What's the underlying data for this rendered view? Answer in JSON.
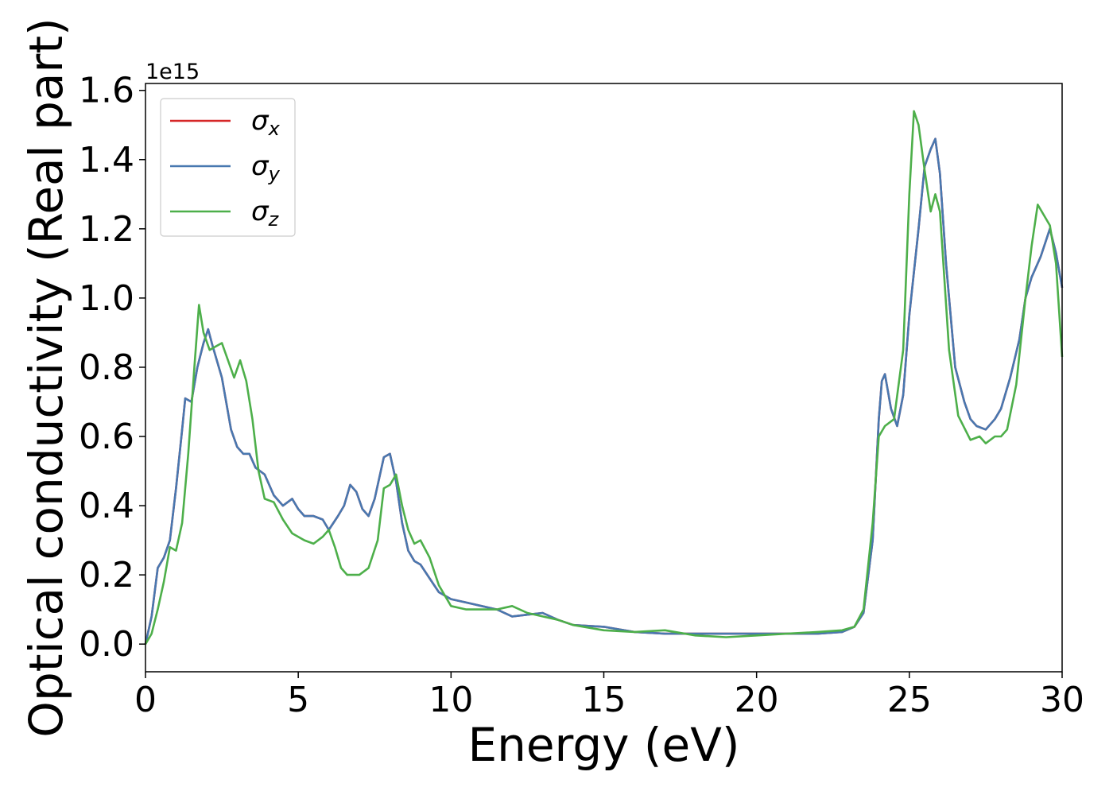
{
  "chart_data": {
    "type": "line",
    "xlabel": "Energy (eV)",
    "ylabel": "Optical conductivity (Real part)",
    "y_offset_text": "1e15",
    "xlim": [
      0,
      30
    ],
    "ylim": [
      -0.08,
      1.62
    ],
    "x_ticks": [
      0,
      5,
      10,
      15,
      20,
      25,
      30
    ],
    "x_tick_labels": [
      "0",
      "5",
      "10",
      "15",
      "20",
      "25",
      "30"
    ],
    "y_ticks": [
      0.0,
      0.2,
      0.4,
      0.6,
      0.8,
      1.0,
      1.2,
      1.4,
      1.6
    ],
    "y_tick_labels": [
      "0.0",
      "0.2",
      "0.4",
      "0.6",
      "0.8",
      "1.0",
      "1.2",
      "1.4",
      "1.6"
    ],
    "grid": false,
    "legend_position": "top-left",
    "series": [
      {
        "name": "σx",
        "legend_base": "σ",
        "legend_sub": "x",
        "color": "#d62728",
        "points": [
          [
            0,
            0
          ],
          [
            0.2,
            0.08
          ],
          [
            0.4,
            0.22
          ],
          [
            0.6,
            0.25
          ],
          [
            0.8,
            0.3
          ],
          [
            1.0,
            0.45
          ],
          [
            1.2,
            0.62
          ],
          [
            1.3,
            0.71
          ],
          [
            1.5,
            0.7
          ],
          [
            1.7,
            0.8
          ],
          [
            1.9,
            0.87
          ],
          [
            2.05,
            0.91
          ],
          [
            2.2,
            0.86
          ],
          [
            2.5,
            0.77
          ],
          [
            2.8,
            0.62
          ],
          [
            3.0,
            0.57
          ],
          [
            3.2,
            0.55
          ],
          [
            3.4,
            0.55
          ],
          [
            3.6,
            0.51
          ],
          [
            3.9,
            0.49
          ],
          [
            4.2,
            0.43
          ],
          [
            4.5,
            0.4
          ],
          [
            4.8,
            0.42
          ],
          [
            5.0,
            0.39
          ],
          [
            5.2,
            0.37
          ],
          [
            5.5,
            0.37
          ],
          [
            5.8,
            0.36
          ],
          [
            6.0,
            0.33
          ],
          [
            6.3,
            0.37
          ],
          [
            6.5,
            0.4
          ],
          [
            6.7,
            0.46
          ],
          [
            6.9,
            0.44
          ],
          [
            7.1,
            0.39
          ],
          [
            7.3,
            0.37
          ],
          [
            7.5,
            0.42
          ],
          [
            7.8,
            0.54
          ],
          [
            8.0,
            0.55
          ],
          [
            8.2,
            0.47
          ],
          [
            8.4,
            0.35
          ],
          [
            8.6,
            0.27
          ],
          [
            8.8,
            0.24
          ],
          [
            9.0,
            0.23
          ],
          [
            9.3,
            0.19
          ],
          [
            9.6,
            0.15
          ],
          [
            10.0,
            0.13
          ],
          [
            10.5,
            0.12
          ],
          [
            11.0,
            0.11
          ],
          [
            11.5,
            0.1
          ],
          [
            12.0,
            0.08
          ],
          [
            12.5,
            0.085
          ],
          [
            13.0,
            0.09
          ],
          [
            13.5,
            0.07
          ],
          [
            14.0,
            0.055
          ],
          [
            15.0,
            0.05
          ],
          [
            16.0,
            0.035
          ],
          [
            17.0,
            0.03
          ],
          [
            18.0,
            0.03
          ],
          [
            19.0,
            0.03
          ],
          [
            20.0,
            0.03
          ],
          [
            21.0,
            0.03
          ],
          [
            22.0,
            0.03
          ],
          [
            22.8,
            0.035
          ],
          [
            23.2,
            0.05
          ],
          [
            23.5,
            0.09
          ],
          [
            23.8,
            0.3
          ],
          [
            24.0,
            0.65
          ],
          [
            24.1,
            0.76
          ],
          [
            24.2,
            0.78
          ],
          [
            24.4,
            0.68
          ],
          [
            24.6,
            0.63
          ],
          [
            24.8,
            0.72
          ],
          [
            25.0,
            0.95
          ],
          [
            25.3,
            1.2
          ],
          [
            25.5,
            1.38
          ],
          [
            25.7,
            1.43
          ],
          [
            25.85,
            1.46
          ],
          [
            26.0,
            1.36
          ],
          [
            26.2,
            1.1
          ],
          [
            26.5,
            0.8
          ],
          [
            26.8,
            0.7
          ],
          [
            27.0,
            0.65
          ],
          [
            27.2,
            0.63
          ],
          [
            27.5,
            0.62
          ],
          [
            27.8,
            0.65
          ],
          [
            28.0,
            0.68
          ],
          [
            28.3,
            0.77
          ],
          [
            28.6,
            0.88
          ],
          [
            28.8,
            1.0
          ],
          [
            29.0,
            1.06
          ],
          [
            29.3,
            1.12
          ],
          [
            29.6,
            1.2
          ],
          [
            29.8,
            1.13
          ],
          [
            30.0,
            1.03
          ]
        ]
      },
      {
        "name": "σy",
        "legend_base": "σ",
        "legend_sub": "y",
        "color": "#4878b0",
        "points": [
          [
            0,
            0
          ],
          [
            0.2,
            0.08
          ],
          [
            0.4,
            0.22
          ],
          [
            0.6,
            0.25
          ],
          [
            0.8,
            0.3
          ],
          [
            1.0,
            0.45
          ],
          [
            1.2,
            0.62
          ],
          [
            1.3,
            0.71
          ],
          [
            1.5,
            0.7
          ],
          [
            1.7,
            0.8
          ],
          [
            1.9,
            0.87
          ],
          [
            2.05,
            0.91
          ],
          [
            2.2,
            0.86
          ],
          [
            2.5,
            0.77
          ],
          [
            2.8,
            0.62
          ],
          [
            3.0,
            0.57
          ],
          [
            3.2,
            0.55
          ],
          [
            3.4,
            0.55
          ],
          [
            3.6,
            0.51
          ],
          [
            3.9,
            0.49
          ],
          [
            4.2,
            0.43
          ],
          [
            4.5,
            0.4
          ],
          [
            4.8,
            0.42
          ],
          [
            5.0,
            0.39
          ],
          [
            5.2,
            0.37
          ],
          [
            5.5,
            0.37
          ],
          [
            5.8,
            0.36
          ],
          [
            6.0,
            0.33
          ],
          [
            6.3,
            0.37
          ],
          [
            6.5,
            0.4
          ],
          [
            6.7,
            0.46
          ],
          [
            6.9,
            0.44
          ],
          [
            7.1,
            0.39
          ],
          [
            7.3,
            0.37
          ],
          [
            7.5,
            0.42
          ],
          [
            7.8,
            0.54
          ],
          [
            8.0,
            0.55
          ],
          [
            8.2,
            0.47
          ],
          [
            8.4,
            0.35
          ],
          [
            8.6,
            0.27
          ],
          [
            8.8,
            0.24
          ],
          [
            9.0,
            0.23
          ],
          [
            9.3,
            0.19
          ],
          [
            9.6,
            0.15
          ],
          [
            10.0,
            0.13
          ],
          [
            10.5,
            0.12
          ],
          [
            11.0,
            0.11
          ],
          [
            11.5,
            0.1
          ],
          [
            12.0,
            0.08
          ],
          [
            12.5,
            0.085
          ],
          [
            13.0,
            0.09
          ],
          [
            13.5,
            0.07
          ],
          [
            14.0,
            0.055
          ],
          [
            15.0,
            0.05
          ],
          [
            16.0,
            0.035
          ],
          [
            17.0,
            0.03
          ],
          [
            18.0,
            0.03
          ],
          [
            19.0,
            0.03
          ],
          [
            20.0,
            0.03
          ],
          [
            21.0,
            0.03
          ],
          [
            22.0,
            0.03
          ],
          [
            22.8,
            0.035
          ],
          [
            23.2,
            0.05
          ],
          [
            23.5,
            0.09
          ],
          [
            23.8,
            0.3
          ],
          [
            24.0,
            0.65
          ],
          [
            24.1,
            0.76
          ],
          [
            24.2,
            0.78
          ],
          [
            24.4,
            0.68
          ],
          [
            24.6,
            0.63
          ],
          [
            24.8,
            0.72
          ],
          [
            25.0,
            0.95
          ],
          [
            25.3,
            1.2
          ],
          [
            25.5,
            1.38
          ],
          [
            25.7,
            1.43
          ],
          [
            25.85,
            1.46
          ],
          [
            26.0,
            1.36
          ],
          [
            26.2,
            1.1
          ],
          [
            26.5,
            0.8
          ],
          [
            26.8,
            0.7
          ],
          [
            27.0,
            0.65
          ],
          [
            27.2,
            0.63
          ],
          [
            27.5,
            0.62
          ],
          [
            27.8,
            0.65
          ],
          [
            28.0,
            0.68
          ],
          [
            28.3,
            0.77
          ],
          [
            28.6,
            0.88
          ],
          [
            28.8,
            1.0
          ],
          [
            29.0,
            1.06
          ],
          [
            29.3,
            1.12
          ],
          [
            29.6,
            1.2
          ],
          [
            29.8,
            1.13
          ],
          [
            30.0,
            1.03
          ]
        ]
      },
      {
        "name": "σz",
        "legend_base": "σ",
        "legend_sub": "z",
        "color": "#4daf4a",
        "points": [
          [
            0,
            0
          ],
          [
            0.2,
            0.03
          ],
          [
            0.4,
            0.1
          ],
          [
            0.6,
            0.18
          ],
          [
            0.8,
            0.28
          ],
          [
            1.0,
            0.27
          ],
          [
            1.2,
            0.35
          ],
          [
            1.4,
            0.55
          ],
          [
            1.6,
            0.8
          ],
          [
            1.75,
            0.98
          ],
          [
            1.9,
            0.9
          ],
          [
            2.1,
            0.85
          ],
          [
            2.3,
            0.86
          ],
          [
            2.5,
            0.87
          ],
          [
            2.7,
            0.82
          ],
          [
            2.9,
            0.77
          ],
          [
            3.1,
            0.82
          ],
          [
            3.3,
            0.76
          ],
          [
            3.5,
            0.65
          ],
          [
            3.7,
            0.5
          ],
          [
            3.9,
            0.42
          ],
          [
            4.2,
            0.41
          ],
          [
            4.5,
            0.36
          ],
          [
            4.8,
            0.32
          ],
          [
            5.2,
            0.3
          ],
          [
            5.5,
            0.29
          ],
          [
            5.8,
            0.31
          ],
          [
            6.0,
            0.33
          ],
          [
            6.2,
            0.28
          ],
          [
            6.4,
            0.22
          ],
          [
            6.6,
            0.2
          ],
          [
            7.0,
            0.2
          ],
          [
            7.3,
            0.22
          ],
          [
            7.6,
            0.3
          ],
          [
            7.8,
            0.45
          ],
          [
            8.0,
            0.46
          ],
          [
            8.2,
            0.49
          ],
          [
            8.4,
            0.4
          ],
          [
            8.6,
            0.33
          ],
          [
            8.8,
            0.29
          ],
          [
            9.0,
            0.3
          ],
          [
            9.3,
            0.25
          ],
          [
            9.6,
            0.17
          ],
          [
            10.0,
            0.11
          ],
          [
            10.5,
            0.1
          ],
          [
            11.0,
            0.1
          ],
          [
            11.5,
            0.1
          ],
          [
            12.0,
            0.11
          ],
          [
            12.5,
            0.09
          ],
          [
            13.0,
            0.08
          ],
          [
            13.5,
            0.07
          ],
          [
            14.0,
            0.055
          ],
          [
            15.0,
            0.04
          ],
          [
            16.0,
            0.035
          ],
          [
            17.0,
            0.04
          ],
          [
            18.0,
            0.025
          ],
          [
            19.0,
            0.02
          ],
          [
            20.0,
            0.025
          ],
          [
            21.0,
            0.03
          ],
          [
            22.0,
            0.035
          ],
          [
            22.8,
            0.04
          ],
          [
            23.2,
            0.05
          ],
          [
            23.5,
            0.1
          ],
          [
            23.8,
            0.35
          ],
          [
            24.0,
            0.6
          ],
          [
            24.2,
            0.63
          ],
          [
            24.5,
            0.65
          ],
          [
            24.8,
            0.85
          ],
          [
            25.0,
            1.3
          ],
          [
            25.15,
            1.54
          ],
          [
            25.3,
            1.5
          ],
          [
            25.5,
            1.37
          ],
          [
            25.7,
            1.25
          ],
          [
            25.85,
            1.3
          ],
          [
            26.0,
            1.25
          ],
          [
            26.3,
            0.85
          ],
          [
            26.6,
            0.66
          ],
          [
            27.0,
            0.59
          ],
          [
            27.3,
            0.6
          ],
          [
            27.5,
            0.58
          ],
          [
            27.8,
            0.6
          ],
          [
            28.0,
            0.6
          ],
          [
            28.2,
            0.62
          ],
          [
            28.5,
            0.75
          ],
          [
            28.8,
            1.0
          ],
          [
            29.0,
            1.15
          ],
          [
            29.2,
            1.27
          ],
          [
            29.4,
            1.24
          ],
          [
            29.6,
            1.21
          ],
          [
            29.8,
            1.1
          ],
          [
            30.0,
            0.83
          ]
        ]
      }
    ]
  }
}
